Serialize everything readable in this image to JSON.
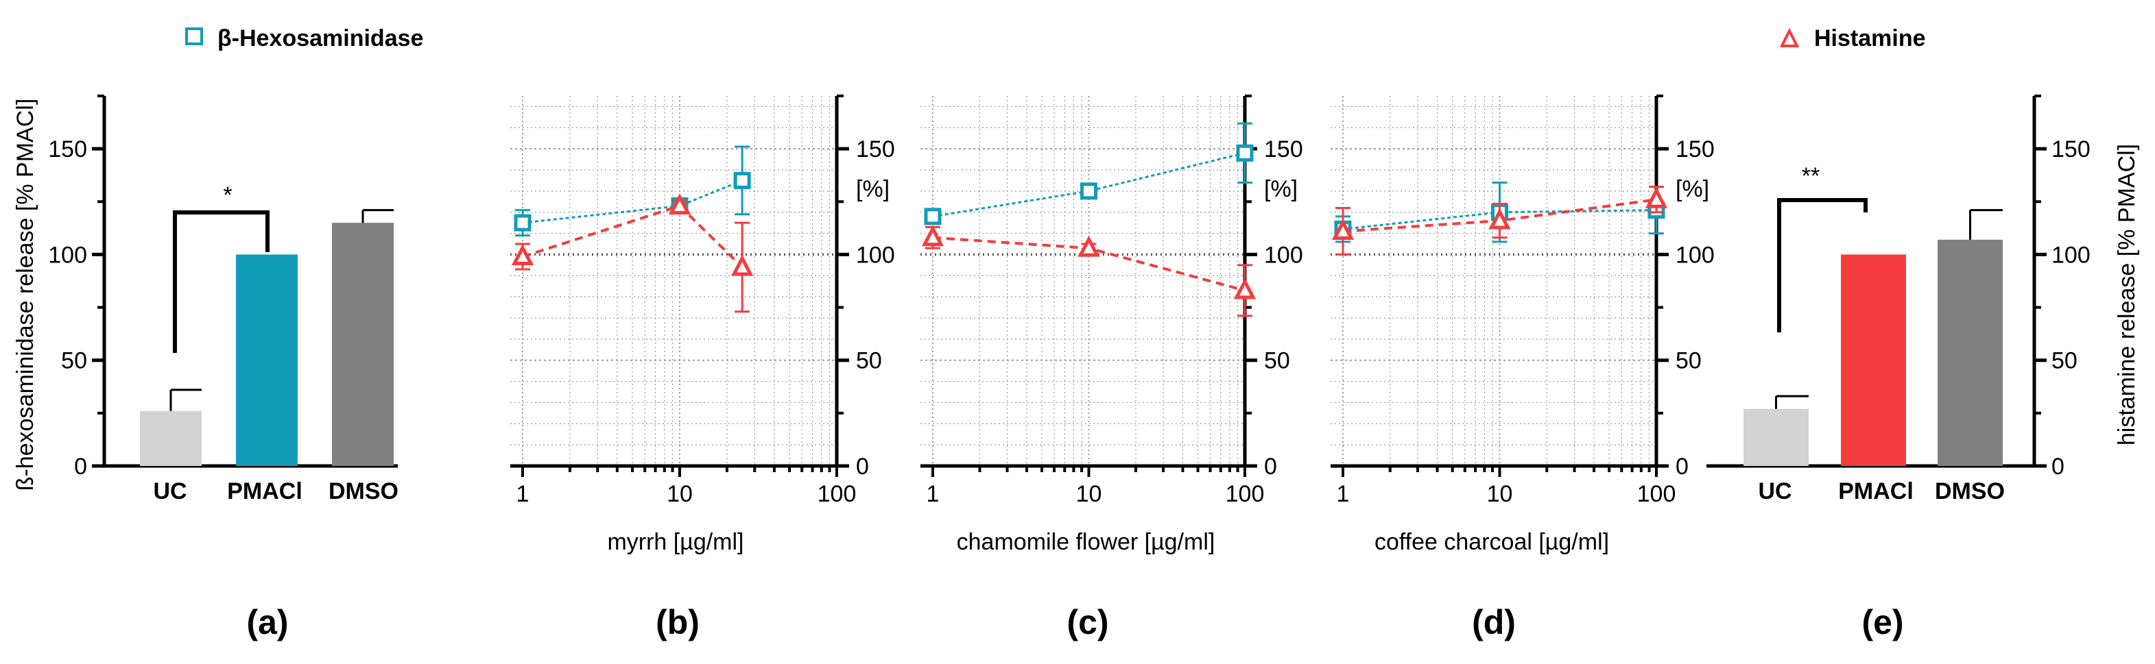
{
  "colors": {
    "hex": "#139cb8",
    "hist": "#f43c3f",
    "uc": "#d3d3d3",
    "dmso": "#808080",
    "grid": "#9a9a9a"
  },
  "legend": {
    "hex_label": "β-Hexosaminidase",
    "hist_label": "Histamine"
  },
  "chart_data": [
    {
      "panel": "(a)",
      "type": "bar",
      "ylabel": "ß-hexosaminidase release [% PMACl]",
      "ylim": [
        0,
        175
      ],
      "yticks": [
        0,
        50,
        100,
        150
      ],
      "categories": [
        "UC",
        "PMACl",
        "DMSO"
      ],
      "values": [
        26,
        100,
        115
      ],
      "errors": [
        10,
        0,
        6
      ],
      "significance": {
        "between": [
          "UC",
          "PMACl"
        ],
        "label": "*"
      }
    },
    {
      "panel": "(b)",
      "type": "line",
      "xscale": "log",
      "xlabel": "myrrh [µg/ml]",
      "ylabel": "[%]",
      "xticks": [
        1,
        10,
        100
      ],
      "yticks": [
        0,
        50,
        100,
        150
      ],
      "ylim": [
        0,
        175
      ],
      "reference_line": 100,
      "series": [
        {
          "name": "β-Hexosaminidase",
          "x": [
            1,
            10,
            25
          ],
          "y": [
            115,
            123,
            135
          ],
          "err": [
            6,
            3,
            16
          ]
        },
        {
          "name": "Histamine",
          "x": [
            1,
            10,
            25
          ],
          "y": [
            99,
            123,
            94
          ],
          "err": [
            6,
            2,
            21
          ]
        }
      ]
    },
    {
      "panel": "(c)",
      "type": "line",
      "xscale": "log",
      "xlabel": "chamomile flower [µg/ml]",
      "ylabel": "[%]",
      "xticks": [
        1,
        10,
        100
      ],
      "yticks": [
        0,
        50,
        100,
        150
      ],
      "ylim": [
        0,
        175
      ],
      "reference_line": 100,
      "series": [
        {
          "name": "β-Hexosaminidase",
          "x": [
            1,
            10,
            100
          ],
          "y": [
            118,
            130,
            148
          ],
          "err": [
            2,
            2,
            14
          ]
        },
        {
          "name": "Histamine",
          "x": [
            1,
            10,
            100
          ],
          "y": [
            108,
            103,
            83
          ],
          "err": [
            5,
            2,
            12
          ]
        }
      ]
    },
    {
      "panel": "(d)",
      "type": "line",
      "xscale": "log",
      "xlabel": "coffee charcoal [µg/ml]",
      "ylabel": "[%]",
      "xticks": [
        1,
        10,
        100
      ],
      "yticks": [
        0,
        50,
        100,
        150
      ],
      "ylim": [
        0,
        175
      ],
      "reference_line": 100,
      "series": [
        {
          "name": "β-Hexosaminidase",
          "x": [
            1,
            10,
            100
          ],
          "y": [
            112,
            120,
            121
          ],
          "err": [
            6,
            14,
            11
          ]
        },
        {
          "name": "Histamine",
          "x": [
            1,
            10,
            100
          ],
          "y": [
            111,
            116,
            126
          ],
          "err": [
            11,
            8,
            6
          ]
        }
      ]
    },
    {
      "panel": "(e)",
      "type": "bar",
      "ylabel": "histamine release [% PMACl]",
      "ylim": [
        0,
        175
      ],
      "yticks": [
        0,
        50,
        100,
        150
      ],
      "categories": [
        "UC",
        "PMACl",
        "DMSO"
      ],
      "values": [
        27,
        100,
        107
      ],
      "errors": [
        6,
        0,
        14
      ],
      "significance": {
        "between": [
          "UC",
          "PMACl"
        ],
        "label": "**"
      }
    }
  ]
}
